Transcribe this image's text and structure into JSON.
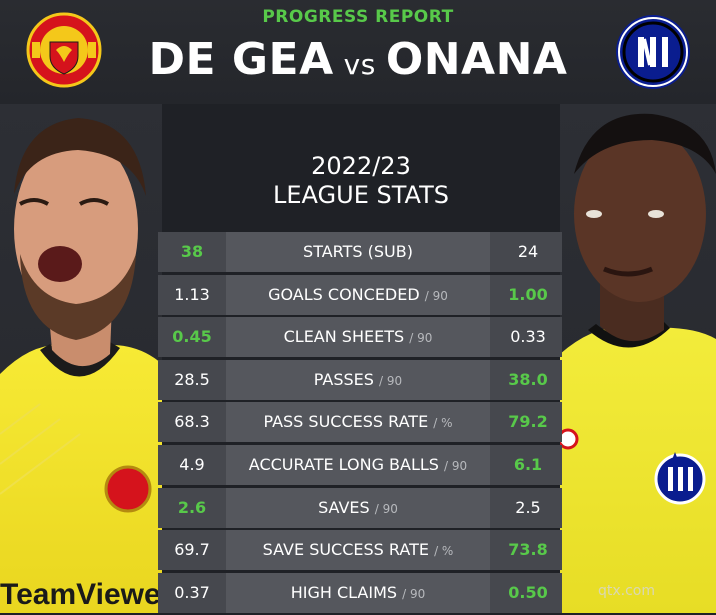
{
  "header": {
    "kicker": "PROGRESS REPORT",
    "player_left": "DE GEA",
    "vs": "vs",
    "player_right": "ONANA"
  },
  "season": {
    "year": "2022/23",
    "title": "LEAGUE STATS"
  },
  "stats": [
    {
      "label": "STARTS (SUB)",
      "unit": "",
      "left": "38",
      "right": "24",
      "winner": "left"
    },
    {
      "label": "GOALS CONCEDED",
      "unit": "/ 90",
      "left": "1.13",
      "right": "1.00",
      "winner": "right"
    },
    {
      "label": "CLEAN SHEETS",
      "unit": "/ 90",
      "left": "0.45",
      "right": "0.33",
      "winner": "left"
    },
    {
      "label": "PASSES",
      "unit": "/ 90",
      "left": "28.5",
      "right": "38.0",
      "winner": "right"
    },
    {
      "label": "PASS SUCCESS RATE",
      "unit": "/ %",
      "left": "68.3",
      "right": "79.2",
      "winner": "right"
    },
    {
      "label": "ACCURATE LONG BALLS",
      "unit": "/ 90",
      "left": "4.9",
      "right": "6.1",
      "winner": "right"
    },
    {
      "label": "SAVES",
      "unit": "/ 90",
      "left": "2.6",
      "right": "2.5",
      "winner": "left"
    },
    {
      "label": "SAVE SUCCESS RATE",
      "unit": "/ %",
      "left": "69.7",
      "right": "73.8",
      "winner": "right"
    },
    {
      "label": "HIGH CLAIMS",
      "unit": "/ 90",
      "left": "0.37",
      "right": "0.50",
      "winner": "right"
    }
  ],
  "photo_left": {
    "sponsor": "TeamViewer"
  },
  "watermark": "qtx.com",
  "colors": {
    "highlight": "#58c94a",
    "background": "#1f2126",
    "row": "#46484e",
    "row_label": "#55575d",
    "kit_left": "#f2e52b",
    "kit_right": "#f0ea35"
  }
}
